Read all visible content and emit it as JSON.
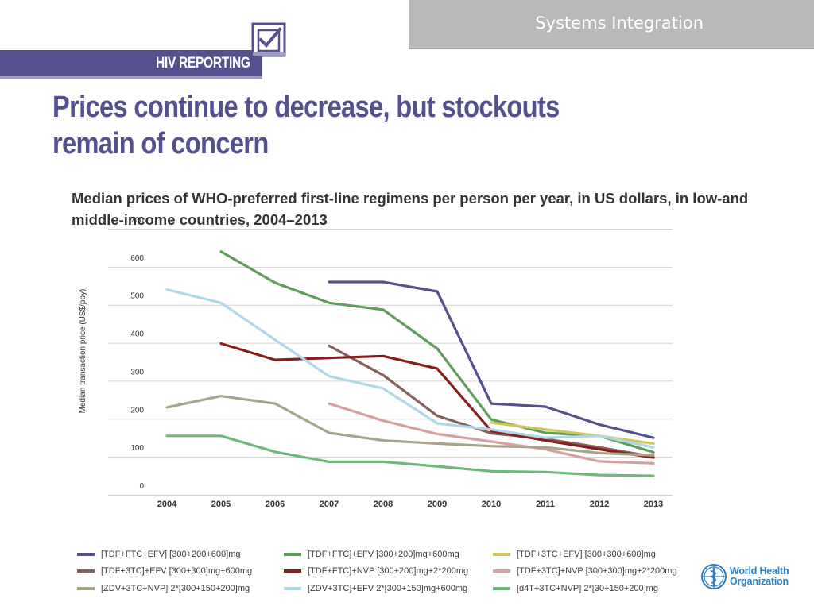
{
  "header": {
    "section_tab": "Systems Integration",
    "brand_label": "HIV REPORTING",
    "colors": {
      "brand": "#55508f",
      "tab": "#b9b9bb"
    }
  },
  "slide": {
    "title": "Prices continue to decrease, but stockouts remain of concern",
    "subtitle": "Median prices of WHO-preferred first-line regimens per person per year, in US dollars, in low-and middle-income countries, 2004–2013"
  },
  "chart_data": {
    "type": "line",
    "title": "Median prices of WHO-preferred first-line regimens per person per year, in US dollars, in low-and middle-income countries, 2004–2013",
    "ylabel": "Median transaction price (US$/ppy)",
    "xlabel": "",
    "x": [
      "2004",
      "2005",
      "2006",
      "2007",
      "2008",
      "2009",
      "2010",
      "2011",
      "2012",
      "2013"
    ],
    "yticks": [
      0,
      100,
      200,
      300,
      400,
      500,
      600,
      700
    ],
    "ylim": [
      0,
      700
    ],
    "grid": true,
    "legend_position": "bottom",
    "series": [
      {
        "name": "[TDF+FTC+EFV] [300+200+600]mg",
        "color": "#55508f",
        "values": [
          null,
          null,
          null,
          560,
          560,
          535,
          240,
          232,
          185,
          150
        ]
      },
      {
        "name": "[TDF+FTC]+EFV [300+200]mg+600mg",
        "color": "#5f9e5a",
        "values": [
          null,
          640,
          558,
          505,
          487,
          385,
          198,
          163,
          155,
          112
        ]
      },
      {
        "name": "[TDF+3TC+EFV] [300+300+600]mg",
        "color": "#cfc55a",
        "values": [
          null,
          null,
          null,
          null,
          null,
          null,
          190,
          172,
          155,
          135
        ]
      },
      {
        "name": "[TDF+3TC]+EFV [300+300]mg+600mg",
        "color": "#86605a",
        "values": [
          null,
          null,
          null,
          392,
          315,
          208,
          162,
          147,
          125,
          100
        ]
      },
      {
        "name": "[TDF+FTC]+NVP [300+200]mg+2*200mg",
        "color": "#8b1c1c",
        "values": [
          null,
          398,
          355,
          360,
          365,
          332,
          168,
          143,
          120,
          98
        ]
      },
      {
        "name": "[TDF+3TC]+NVP [300+300]mg+2*200mg",
        "color": "#d6a0a0",
        "values": [
          null,
          null,
          null,
          240,
          195,
          160,
          140,
          120,
          88,
          83
        ]
      },
      {
        "name": "[ZDV+3TC+NVP] 2*[300+150+200]mg",
        "color": "#a9a488",
        "values": [
          230,
          260,
          240,
          163,
          143,
          135,
          128,
          125,
          110,
          104
        ]
      },
      {
        "name": "[ZDV+3TC]+EFV 2*[300+150]mg+600mg",
        "color": "#add8e8",
        "values": [
          540,
          505,
          408,
          312,
          280,
          188,
          172,
          150,
          155,
          125
        ]
      },
      {
        "name": "[d4T+3TC+NVP] 2*[30+150+200]mg",
        "color": "#6db87a",
        "values": [
          155,
          155,
          113,
          87,
          87,
          75,
          62,
          60,
          52,
          50
        ]
      }
    ]
  },
  "footer": {
    "org_name_line1": "World Health",
    "org_name_line2": "Organization",
    "org_color": "#2d7fc1"
  }
}
